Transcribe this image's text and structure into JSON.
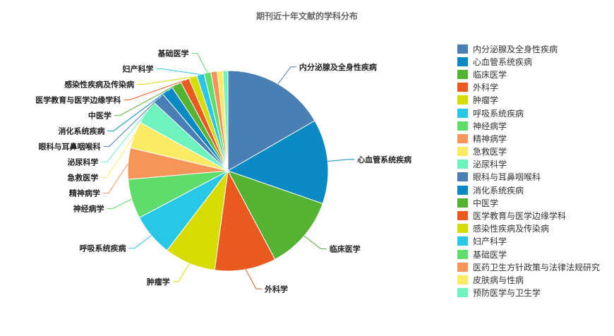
{
  "chart_data": {
    "type": "pie",
    "title": "期刊近十年文献的学科分布",
    "legend_position": "right",
    "slices": [
      {
        "name": "内分泌腺及全身性疾病",
        "value": 16.5,
        "color": "#4a7fb5"
      },
      {
        "name": "心血管系统疾病",
        "value": 13.5,
        "color": "#0a8ac5"
      },
      {
        "name": "临床医学",
        "value": 11.8,
        "color": "#54b432"
      },
      {
        "name": "外科学",
        "value": 9.8,
        "color": "#ea5a1e"
      },
      {
        "name": "肿瘤学",
        "value": 8.2,
        "color": "#d7dc00"
      },
      {
        "name": "呼吸系统疾病",
        "value": 6.8,
        "color": "#28c7e6"
      },
      {
        "name": "神经病学",
        "value": 6.3,
        "color": "#5fdd6a"
      },
      {
        "name": "精神病学",
        "value": 5.0,
        "color": "#f7945a"
      },
      {
        "name": "急救医学",
        "value": 4.3,
        "color": "#fbeb64"
      },
      {
        "name": "泌尿科学",
        "value": 3.8,
        "color": "#6ef2be"
      },
      {
        "name": "眼科与耳鼻咽喉科",
        "value": 1.9,
        "color": "#4a7fb5"
      },
      {
        "name": "消化系统疾病",
        "value": 1.8,
        "color": "#0a8ac5"
      },
      {
        "name": "中医学",
        "value": 1.6,
        "color": "#54b432"
      },
      {
        "name": "医学教育与医学边缘学科",
        "value": 1.4,
        "color": "#ea5a1e"
      },
      {
        "name": "感染性疾病及传染病",
        "value": 1.3,
        "color": "#d7dc00"
      },
      {
        "name": "妇产科学",
        "value": 1.2,
        "color": "#28c7e6"
      },
      {
        "name": "基础医学",
        "value": 1.1,
        "color": "#5fdd6a"
      },
      {
        "name": "医药卫生方针政策与法律法规研究",
        "value": 1.0,
        "color": "#f7945a"
      },
      {
        "name": "皮肤病与性病",
        "value": 0.9,
        "color": "#fbeb64"
      },
      {
        "name": "预防医学与卫生学",
        "value": 0.8,
        "color": "#6ef2be"
      }
    ],
    "labeled_slices": [
      "内分泌腺及全身性疾病",
      "心血管系统疾病",
      "临床医学",
      "外科学",
      "肿瘤学",
      "呼吸系统疾病",
      "神经病学",
      "精神病学",
      "急救医学",
      "泌尿科学",
      "眼科与耳鼻咽喉科",
      "消化系统疾病",
      "中医学",
      "医学教育与医学边缘学科",
      "感染性疾病及传染病",
      "妇产科学",
      "基础医学"
    ]
  }
}
